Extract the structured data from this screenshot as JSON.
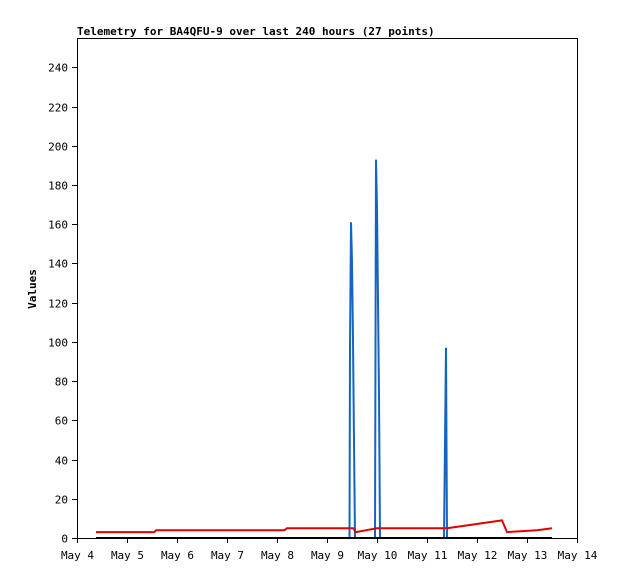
{
  "chart_data": {
    "type": "line",
    "title": "Telemetry for BA4QFU-9 over last 240 hours (27 points)",
    "xlabel": "",
    "ylabel": "Values",
    "x_ticks": [
      "May 4",
      "May 5",
      "May 6",
      "May 7",
      "May 8",
      "May 9",
      "May 10",
      "May 11",
      "May 12",
      "May 13",
      "May 14"
    ],
    "y_ticks": [
      0,
      20,
      40,
      60,
      80,
      100,
      120,
      140,
      160,
      180,
      200,
      220,
      240
    ],
    "xlim": [
      4.0,
      14.0
    ],
    "ylim": [
      0,
      255
    ],
    "grid": false,
    "legend": "none",
    "x_units": "day of May",
    "series": [
      {
        "color": "#1565c0",
        "points": [
          [
            9.45,
            0
          ],
          [
            9.46,
            97
          ],
          [
            9.48,
            161
          ],
          [
            9.5,
            141
          ],
          [
            9.52,
            101
          ],
          [
            9.54,
            49
          ],
          [
            9.56,
            0
          ],
          [
            9.96,
            0
          ],
          [
            9.98,
            193
          ],
          [
            10.0,
            169
          ],
          [
            10.02,
            121
          ],
          [
            10.04,
            73
          ],
          [
            10.06,
            0
          ],
          [
            11.34,
            0
          ],
          [
            11.36,
            49
          ],
          [
            11.38,
            97
          ],
          [
            11.4,
            0
          ]
        ]
      },
      {
        "color": "#e00000",
        "points": [
          [
            4.38,
            3
          ],
          [
            5.55,
            3
          ],
          [
            5.58,
            4
          ],
          [
            8.15,
            4
          ],
          [
            8.2,
            5
          ],
          [
            9.52,
            5
          ],
          [
            9.58,
            3
          ],
          [
            10.0,
            5
          ],
          [
            11.4,
            5
          ],
          [
            12.5,
            9
          ],
          [
            12.6,
            3
          ],
          [
            13.2,
            4
          ],
          [
            13.5,
            5
          ]
        ]
      },
      {
        "color": "#000000",
        "points": [
          [
            4.38,
            0
          ],
          [
            13.5,
            0
          ]
        ]
      }
    ]
  }
}
